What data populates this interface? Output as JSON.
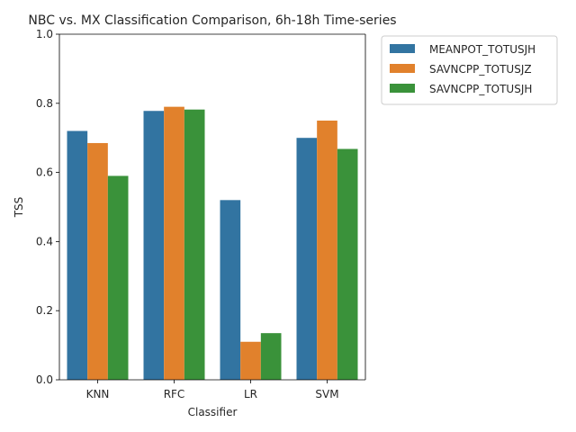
{
  "chart_data": {
    "type": "bar",
    "title": "NBC vs. MX Classification Comparison, 6h-18h Time-series",
    "xlabel": "Classifier",
    "ylabel": "TSS",
    "categories": [
      "KNN",
      "RFC",
      "LR",
      "SVM"
    ],
    "ylim": [
      0,
      1.0
    ],
    "yticks": [
      "0.0",
      "0.2",
      "0.4",
      "0.6",
      "0.8",
      "1.0"
    ],
    "legend_position": "outside-top-right",
    "grid": false,
    "series": [
      {
        "name": "MEANPOT_TOTUSJH",
        "color": "#3274a1",
        "values": [
          0.72,
          0.778,
          0.52,
          0.7
        ]
      },
      {
        "name": "SAVNCPP_TOTUSJZ",
        "color": "#e1812c",
        "values": [
          0.685,
          0.79,
          0.11,
          0.75
        ]
      },
      {
        "name": "SAVNCPP_TOTUSJH",
        "color": "#3a923a",
        "values": [
          0.59,
          0.782,
          0.135,
          0.668
        ]
      }
    ]
  }
}
